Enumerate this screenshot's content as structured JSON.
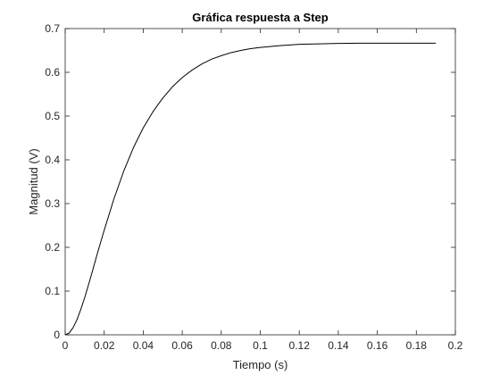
{
  "chart_data": {
    "type": "line",
    "title": "Gráfica respuesta a Step",
    "xlabel": "Tiempo (s)",
    "ylabel": "Magnitud (V)",
    "xlim": [
      0,
      0.2
    ],
    "ylim": [
      0,
      0.7
    ],
    "xticks": [
      0,
      0.02,
      0.04,
      0.06,
      0.08,
      0.1,
      0.12,
      0.14,
      0.16,
      0.18,
      0.2
    ],
    "xtick_labels": [
      "0",
      "0.02",
      "0.04",
      "0.06",
      "0.08",
      "0.1",
      "0.12",
      "0.14",
      "0.16",
      "0.18",
      "0.2"
    ],
    "yticks": [
      0,
      0.1,
      0.2,
      0.3,
      0.4,
      0.5,
      0.6,
      0.7
    ],
    "ytick_labels": [
      "0",
      "0.1",
      "0.2",
      "0.3",
      "0.4",
      "0.5",
      "0.6",
      "0.7"
    ],
    "grid": false,
    "legend": null,
    "line_color": "#000000",
    "series": [
      {
        "x": [
          0,
          0.002,
          0.004,
          0.006,
          0.008,
          0.01,
          0.012,
          0.014,
          0.016,
          0.018,
          0.02,
          0.025,
          0.03,
          0.035,
          0.04,
          0.045,
          0.05,
          0.055,
          0.06,
          0.065,
          0.07,
          0.075,
          0.08,
          0.085,
          0.09,
          0.095,
          0.1,
          0.11,
          0.12,
          0.13,
          0.14,
          0.15,
          0.16,
          0.17,
          0.18,
          0.19
        ],
        "y": [
          0,
          0.004,
          0.016,
          0.034,
          0.058,
          0.085,
          0.115,
          0.146,
          0.178,
          0.209,
          0.239,
          0.311,
          0.374,
          0.428,
          0.473,
          0.51,
          0.541,
          0.567,
          0.588,
          0.605,
          0.619,
          0.63,
          0.638,
          0.645,
          0.65,
          0.654,
          0.657,
          0.661,
          0.664,
          0.665,
          0.666,
          0.6665,
          0.6667,
          0.6667,
          0.6667,
          0.6667
        ]
      }
    ]
  }
}
